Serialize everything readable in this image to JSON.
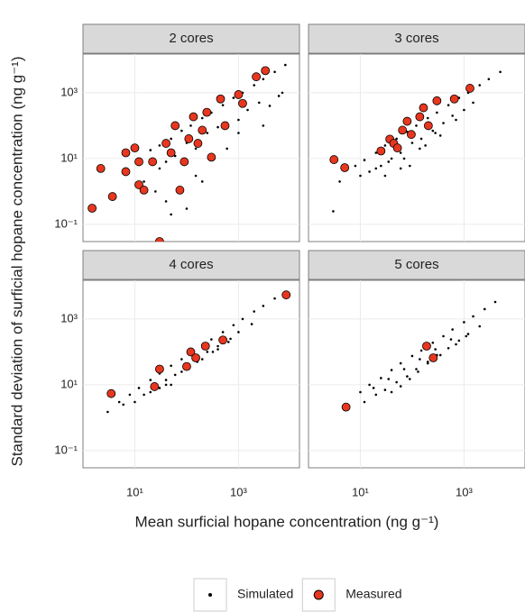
{
  "chart_data": {
    "type": "scatter",
    "xlabel": "Mean surficial hopane concentration (ng g⁻¹)",
    "ylabel": "Standard deviation of surficial hopane concentration (ng g⁻¹)",
    "log_x": true,
    "log_y": true,
    "grid": true,
    "legend": "bottom",
    "xlim": [
      1,
      15000
    ],
    "ylim": [
      0.03,
      15000
    ],
    "xticks": [
      {
        "value": 10,
        "label": "10¹"
      },
      {
        "value": 1000,
        "label": "10³"
      }
    ],
    "yticks": [
      {
        "value": 0.1,
        "label": "10⁻¹"
      },
      {
        "value": 10,
        "label": "10¹"
      },
      {
        "value": 1000,
        "label": "10³"
      }
    ],
    "series": [
      {
        "name": "Simulated",
        "color": "#000000"
      },
      {
        "name": "Measured",
        "color": "#e8371f"
      }
    ],
    "facets": [
      {
        "title": "2 cores",
        "series": [
          {
            "x": [
              20,
              30,
              50,
              80,
              120,
              200,
              300,
              500,
              800,
              1200,
              2000,
              3000,
              5000,
              8000,
              30,
              60,
              100,
              150,
              250,
              400,
              600,
              1000,
              1500,
              2500,
              4000,
              6000,
              15,
              40,
              70,
              150,
              300,
              600,
              1000,
              3000,
              50,
              100,
              200,
              25,
              40,
              7000
            ],
            "values": [
              18,
              25,
              40,
              70,
              100,
              170,
              250,
              420,
              700,
              1000,
              1700,
              2600,
              4300,
              7000,
              5,
              12,
              30,
              20,
              60,
              90,
              120,
              150,
              300,
              500,
              400,
              800,
              2,
              0.5,
              1,
              3,
              10,
              20,
              60,
              100,
              0.2,
              0.3,
              2,
              1,
              8,
              1000
            ]
          },
          {
            "x": [
              1.5,
              2.2,
              3.7,
              6.7,
              6.7,
              10,
              12,
              15,
              12,
              22,
              30,
              40,
              50,
              60,
              74,
              90,
              110,
              135,
              165,
              200,
              245,
              300,
              450,
              550,
              1000,
              1200,
              2200,
              3300
            ],
            "values": [
              0.31,
              5,
              0.7,
              4,
              15,
              21,
              1.6,
              1.1,
              8,
              8,
              0.03,
              29,
              15,
              100,
              1.1,
              8,
              40,
              186,
              29,
              73,
              254,
              11,
              650,
              100,
              880,
              475,
              3060,
              4700
            ]
          }
        ]
      },
      {
        "title": "3 cores",
        "series": [
          {
            "x": [
              8,
              12,
              20,
              30,
              50,
              80,
              120,
              200,
              300,
              500,
              800,
              1200,
              2000,
              3000,
              5000,
              15,
              25,
              40,
              60,
              100,
              150,
              250,
              400,
              600,
              1000,
              1500,
              10,
              20,
              35,
              70,
              140,
              280,
              3,
              4,
              30,
              60,
              90,
              180,
              350,
              700
            ],
            "values": [
              6,
              9,
              15,
              25,
              40,
              65,
              100,
              170,
              250,
              420,
              700,
              1000,
              1700,
              2600,
              4300,
              4,
              6,
              10,
              15,
              30,
              40,
              70,
              120,
              200,
              300,
              500,
              3,
              5,
              8,
              10,
              20,
              60,
              0.25,
              2,
              3,
              5,
              6,
              25,
              50,
              150
            ]
          },
          {
            "x": [
              3.1,
              5,
              25,
              37,
              44,
              52,
              65,
              80,
              96,
              140,
              165,
              205,
              300,
              650,
              1300
            ],
            "values": [
              9.3,
              5.3,
              17,
              39,
              29,
              21,
              73,
              136,
              54,
              186,
              350,
              100,
              570,
              650,
              1370
            ]
          }
        ]
      },
      {
        "title": "4 cores",
        "series": [
          {
            "x": [
              5,
              8,
              12,
              20,
              30,
              50,
              80,
              120,
              200,
              300,
              500,
              800,
              1200,
              2000,
              3000,
              5000,
              15,
              25,
              40,
              60,
              100,
              150,
              250,
              400,
              700,
              1000,
              1800,
              10,
              20,
              40,
              80,
              160,
              320,
              640,
              3,
              6,
              30,
              50,
              200,
              400
            ],
            "values": [
              3,
              5,
              8,
              14,
              22,
              38,
              60,
              95,
              160,
              240,
              400,
              650,
              1000,
              1700,
              2500,
              4200,
              5,
              9,
              14,
              20,
              40,
              55,
              100,
              150,
              250,
              400,
              700,
              3,
              6,
              10,
              25,
              50,
              100,
              200,
              1.5,
              2.5,
              8,
              10,
              60,
              120
            ]
          },
          {
            "x": [
              3.5,
              24,
              30,
              100,
              120,
              150,
              230,
              500,
              8300
            ],
            "values": [
              5.4,
              8.8,
              30,
              36,
              100,
              66,
              150,
              230,
              5400
            ]
          }
        ]
      },
      {
        "title": "5 cores",
        "series": [
          {
            "x": [
              10,
              15,
              25,
              40,
              60,
              100,
              150,
              250,
              400,
              600,
              1000,
              1500,
              2500,
              4000,
              12,
              20,
              30,
              50,
              80,
              120,
              200,
              300,
              500,
              800,
              1200,
              2000,
              18,
              35,
              70,
              140,
              280,
              560,
              40,
              60,
              90,
              130,
              200,
              350,
              700,
              1100
            ],
            "values": [
              6,
              10,
              16,
              28,
              45,
              75,
              110,
              190,
              300,
              480,
              800,
              1200,
              2000,
              3300,
              3,
              5,
              7,
              12,
              18,
              30,
              50,
              80,
              130,
              220,
              350,
              600,
              8,
              15,
              30,
              60,
              120,
              240,
              6,
              9,
              15,
              25,
              45,
              80,
              170,
              300
            ]
          },
          {
            "x": [
              5.3,
              190,
              255
            ],
            "values": [
              2.1,
              150,
              66
            ]
          }
        ]
      }
    ]
  }
}
